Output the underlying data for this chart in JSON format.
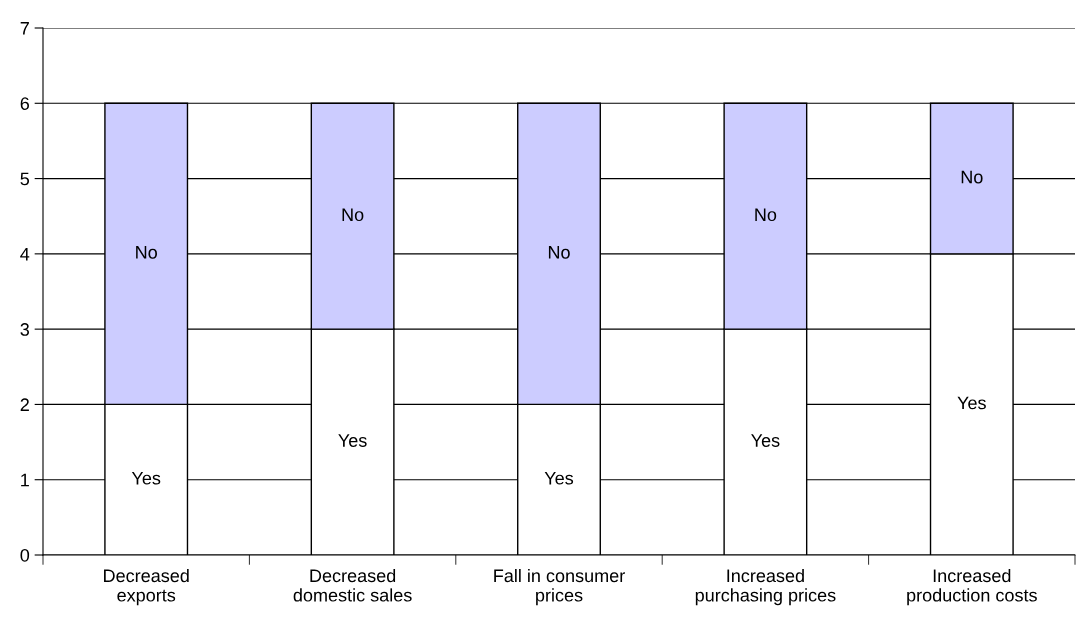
{
  "chart_data": {
    "type": "bar",
    "stacked": true,
    "categories": [
      "Decreased\nexports",
      "Decreased\ndomestic sales",
      "Fall in consumer\nprices",
      "Increased\npurchasing prices",
      "Increased\nproduction costs"
    ],
    "series": [
      {
        "name": "Yes",
        "color": "#ffffff",
        "values": [
          2,
          3,
          2,
          3,
          4
        ]
      },
      {
        "name": "No",
        "color": "#ccccff",
        "values": [
          4,
          3,
          4,
          3,
          2
        ]
      }
    ],
    "ylim": [
      0,
      7
    ],
    "yticks": [
      0,
      1,
      2,
      3,
      4,
      5,
      6,
      7
    ],
    "grid": "y",
    "legend": false
  }
}
